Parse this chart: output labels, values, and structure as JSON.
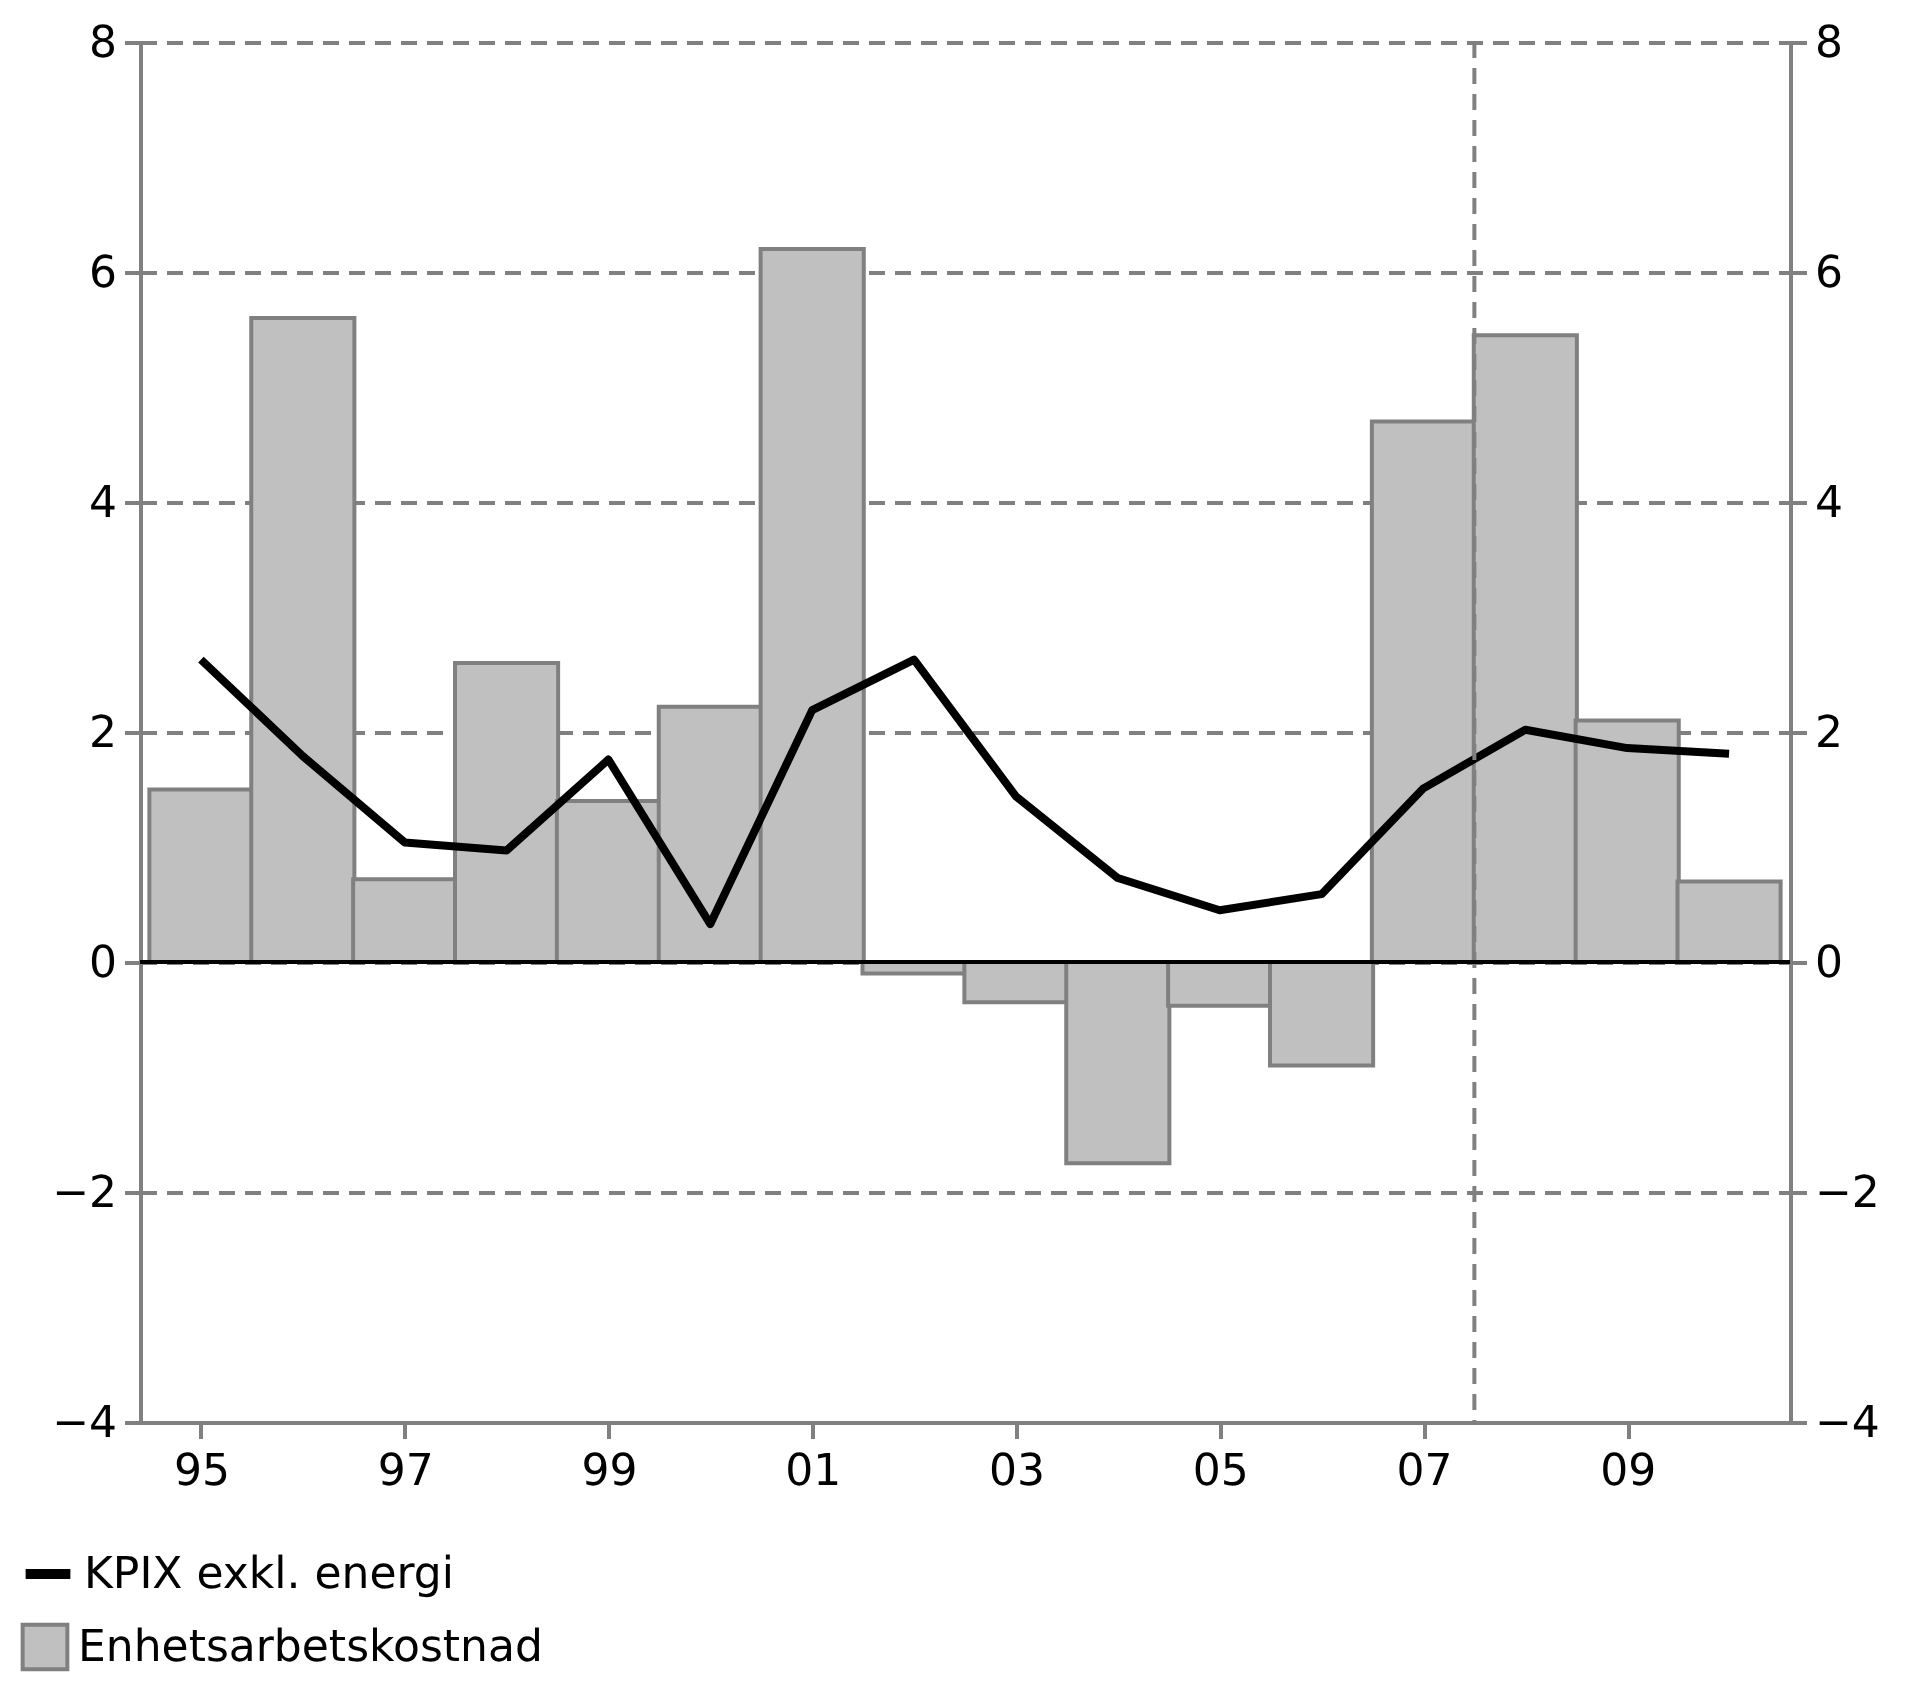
{
  "chart_data": {
    "type": "bar",
    "x": [
      1995,
      1996,
      1997,
      1998,
      1999,
      2000,
      2001,
      2002,
      2003,
      2004,
      2005,
      2006,
      2007,
      2008,
      2009,
      2010
    ],
    "series": [
      {
        "name": "Enhetsarbetskostnad",
        "color": "#c0c0c0",
        "values": [
          1.5,
          5.6,
          0.72,
          2.6,
          1.4,
          2.22,
          6.2,
          -0.1,
          -0.35,
          -1.75,
          -0.38,
          -0.9,
          4.7,
          5.45,
          2.1,
          0.7
        ]
      },
      {
        "name": "KPIX exkl. energi",
        "type": "line",
        "color": "#000000",
        "values": [
          2.63,
          1.79,
          1.04,
          0.97,
          1.76,
          0.33,
          2.19,
          2.63,
          1.44,
          0.73,
          0.45,
          0.59,
          1.51,
          2.02,
          1.86,
          1.81
        ]
      }
    ],
    "xlim": [
      1994.5,
      2010.5
    ],
    "xticks": [
      {
        "value": 1995,
        "label": "95"
      },
      {
        "value": 1997,
        "label": "97"
      },
      {
        "value": 1999,
        "label": "99"
      },
      {
        "value": 2001,
        "label": "01"
      },
      {
        "value": 2003,
        "label": "03"
      },
      {
        "value": 2005,
        "label": "05"
      },
      {
        "value": 2007,
        "label": "07"
      },
      {
        "value": 2009,
        "label": "09"
      }
    ],
    "ylim": [
      -4,
      8
    ],
    "yticks": [
      -4,
      -2,
      0,
      2,
      4,
      6,
      8
    ],
    "y2lim": [
      -4,
      8
    ],
    "y2ticks": [
      -4,
      -2,
      0,
      2,
      4,
      6,
      8
    ],
    "grid": "y",
    "legend": "bottom left",
    "ref_lines": [
      {
        "axis": "x",
        "value": 2007.5,
        "color": "#808080",
        "line_style": "dashed"
      },
      {
        "axis": "y",
        "value": 0,
        "color": "#000000",
        "line_style": "solid"
      }
    ]
  }
}
